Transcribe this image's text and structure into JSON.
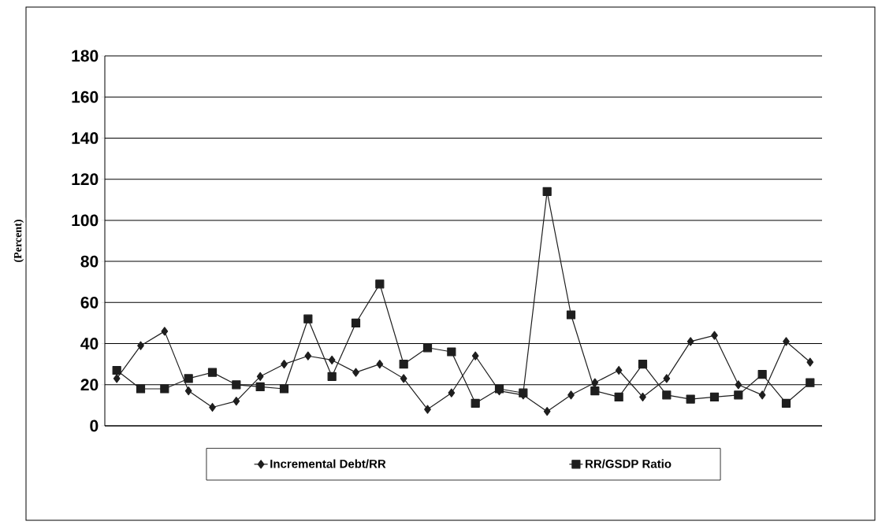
{
  "chart_data": {
    "type": "line",
    "ylabel": "(Percent)",
    "categories": [
      null,
      null,
      null,
      null,
      null,
      null,
      null,
      null,
      null,
      null,
      null,
      null,
      null,
      null,
      null,
      null,
      null,
      null,
      null,
      null,
      null,
      null,
      null,
      null,
      null,
      null,
      null,
      null,
      null,
      null
    ],
    "series": [
      {
        "name": "Incremental Debt/RR",
        "color": "#1e1e1e",
        "marker": "diamond",
        "values": [
          23,
          39,
          46,
          17,
          9,
          12,
          24,
          30,
          34,
          32,
          26,
          30,
          23,
          8,
          16,
          34,
          17,
          15,
          7,
          15,
          21,
          27,
          14,
          23,
          41,
          44,
          20,
          15,
          41,
          31
        ]
      },
      {
        "name": "RR/GSDP Ratio",
        "color": "#1e1e1e",
        "marker": "square",
        "values": [
          27,
          18,
          18,
          23,
          26,
          20,
          19,
          18,
          52,
          24,
          50,
          69,
          30,
          38,
          36,
          11,
          18,
          16,
          114,
          54,
          17,
          14,
          30,
          15,
          13,
          14,
          15,
          25,
          11,
          21
        ]
      }
    ],
    "ylim": [
      0,
      180
    ],
    "yticks": [
      0,
      20,
      40,
      60,
      80,
      100,
      120,
      140,
      160,
      180
    ],
    "grid": "y",
    "legend": "bottom",
    "tick_labels": "y",
    "line_style": "solid"
  }
}
